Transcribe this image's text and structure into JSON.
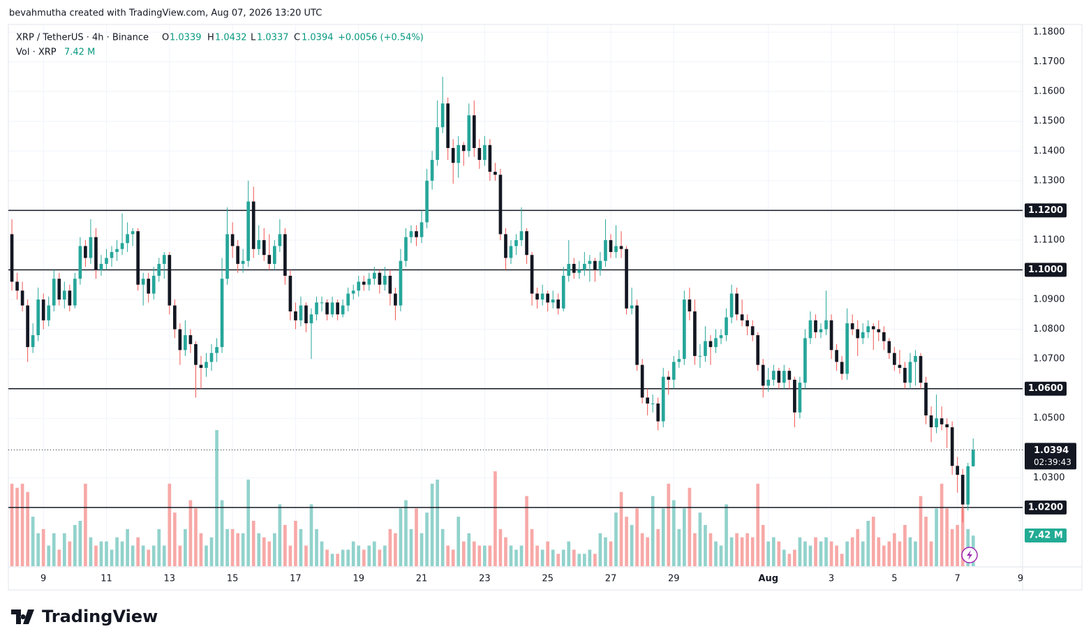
{
  "header": {
    "attribution": "bevahmutha created with TradingView.com, Aug 07, 2026 13:20 UTC",
    "brand": "TradingView"
  },
  "chart_data": {
    "type": "candlestick",
    "symbol": "XRP / TetherUS · 4h · Binance",
    "ohlc_labels": [
      "O",
      "H",
      "L",
      "C"
    ],
    "change": "+0.0056 (+0.54%)",
    "volume_title": "Vol · XRP",
    "volume_label": "7.42 M",
    "countdown": "02:39:43",
    "up_color": "#26a69a",
    "down_color": "#131722",
    "up_wick": "#26a69a",
    "down_wick": "#ef5350",
    "up_volume_color": "#92d2cc",
    "down_volume_color": "#f7a9a7",
    "grid": true,
    "ylim": [
      1.0,
      1.1826
    ],
    "xlim": [
      -0.67,
      192.4
    ],
    "yticks": [
      {
        "value": 1.18,
        "label": "1.1800"
      },
      {
        "value": 1.17,
        "label": "1.1700"
      },
      {
        "value": 1.16,
        "label": "1.1600"
      },
      {
        "value": 1.15,
        "label": "1.1500"
      },
      {
        "value": 1.14,
        "label": "1.1400"
      },
      {
        "value": 1.13,
        "label": "1.1300"
      },
      {
        "value": 1.11,
        "label": "1.1100"
      },
      {
        "value": 1.09,
        "label": "1.0900"
      },
      {
        "value": 1.08,
        "label": "1.0800"
      },
      {
        "value": 1.07,
        "label": "1.0700"
      },
      {
        "value": 1.05,
        "label": "1.0500"
      },
      {
        "value": 1.03,
        "label": "1.0300"
      }
    ],
    "hlines": [
      {
        "value": 1.12,
        "label": "1.1200"
      },
      {
        "value": 1.1,
        "label": "1.1000"
      },
      {
        "value": 1.06,
        "label": "1.0600"
      },
      {
        "value": 1.02,
        "label": "1.0200"
      }
    ],
    "xticks": [
      {
        "value": 6,
        "label": "9"
      },
      {
        "value": 18,
        "label": "11"
      },
      {
        "value": 30,
        "label": "13"
      },
      {
        "value": 42,
        "label": "15"
      },
      {
        "value": 54,
        "label": "17"
      },
      {
        "value": 66,
        "label": "19"
      },
      {
        "value": 78,
        "label": "21"
      },
      {
        "value": 90,
        "label": "23"
      },
      {
        "value": 102,
        "label": "25"
      },
      {
        "value": 114,
        "label": "27"
      },
      {
        "value": 126,
        "label": "29"
      },
      {
        "value": 144,
        "label": "Aug"
      },
      {
        "value": 156,
        "label": "3"
      },
      {
        "value": 168,
        "label": "5"
      },
      {
        "value": 180,
        "label": "7"
      },
      {
        "value": 192,
        "label": "9"
      }
    ],
    "candles": [
      [
        1.112,
        1.117,
        1.093,
        1.096
      ],
      [
        1.096,
        1.099,
        1.09,
        1.093
      ],
      [
        1.093,
        1.096,
        1.086,
        1.088
      ],
      [
        1.088,
        1.09,
        1.069,
        1.074
      ],
      [
        1.074,
        1.082,
        1.072,
        1.078
      ],
      [
        1.078,
        1.094,
        1.076,
        1.09
      ],
      [
        1.09,
        1.092,
        1.08,
        1.083
      ],
      [
        1.083,
        1.091,
        1.081,
        1.088
      ],
      [
        1.088,
        1.1,
        1.086,
        1.097
      ],
      [
        1.097,
        1.099,
        1.088,
        1.09
      ],
      [
        1.09,
        1.096,
        1.087,
        1.093
      ],
      [
        1.093,
        1.095,
        1.086,
        1.088
      ],
      [
        1.088,
        1.099,
        1.087,
        1.097
      ],
      [
        1.097,
        1.111,
        1.095,
        1.108
      ],
      [
        1.108,
        1.11,
        1.101,
        1.104
      ],
      [
        1.104,
        1.117,
        1.102,
        1.111
      ],
      [
        1.111,
        1.114,
        1.097,
        1.1
      ],
      [
        1.1,
        1.105,
        1.098,
        1.102
      ],
      [
        1.102,
        1.107,
        1.1,
        1.104
      ],
      [
        1.104,
        1.108,
        1.101,
        1.106
      ],
      [
        1.106,
        1.11,
        1.103,
        1.107
      ],
      [
        1.107,
        1.119,
        1.105,
        1.109
      ],
      [
        1.109,
        1.116,
        1.106,
        1.112
      ],
      [
        1.112,
        1.114,
        1.108,
        1.113
      ],
      [
        1.113,
        1.114,
        1.093,
        1.095
      ],
      [
        1.095,
        1.099,
        1.088,
        1.097
      ],
      [
        1.097,
        1.099,
        1.089,
        1.092
      ],
      [
        1.092,
        1.101,
        1.09,
        1.098
      ],
      [
        1.098,
        1.104,
        1.096,
        1.102
      ],
      [
        1.102,
        1.106,
        1.097,
        1.105
      ],
      [
        1.105,
        1.106,
        1.085,
        1.088
      ],
      [
        1.088,
        1.09,
        1.077,
        1.08
      ],
      [
        1.08,
        1.082,
        1.068,
        1.073
      ],
      [
        1.073,
        1.083,
        1.071,
        1.078
      ],
      [
        1.078,
        1.08,
        1.072,
        1.075
      ],
      [
        1.075,
        1.076,
        1.057,
        1.068
      ],
      [
        1.068,
        1.071,
        1.06,
        1.067
      ],
      [
        1.067,
        1.072,
        1.064,
        1.069
      ],
      [
        1.069,
        1.075,
        1.066,
        1.072
      ],
      [
        1.072,
        1.077,
        1.069,
        1.074
      ],
      [
        1.074,
        1.104,
        1.072,
        1.097
      ],
      [
        1.097,
        1.121,
        1.095,
        1.112
      ],
      [
        1.112,
        1.116,
        1.104,
        1.108
      ],
      [
        1.108,
        1.11,
        1.099,
        1.102
      ],
      [
        1.102,
        1.107,
        1.099,
        1.103
      ],
      [
        1.103,
        1.13,
        1.101,
        1.123
      ],
      [
        1.123,
        1.128,
        1.104,
        1.107
      ],
      [
        1.107,
        1.115,
        1.105,
        1.11
      ],
      [
        1.11,
        1.114,
        1.103,
        1.105
      ],
      [
        1.105,
        1.112,
        1.1,
        1.102
      ],
      [
        1.102,
        1.11,
        1.1,
        1.108
      ],
      [
        1.108,
        1.117,
        1.106,
        1.112
      ],
      [
        1.112,
        1.114,
        1.095,
        1.098
      ],
      [
        1.098,
        1.1,
        1.083,
        1.086
      ],
      [
        1.086,
        1.089,
        1.08,
        1.083
      ],
      [
        1.083,
        1.091,
        1.081,
        1.088
      ],
      [
        1.088,
        1.089,
        1.079,
        1.082
      ],
      [
        1.082,
        1.087,
        1.07,
        1.085
      ],
      [
        1.085,
        1.091,
        1.083,
        1.089
      ],
      [
        1.089,
        1.091,
        1.086,
        1.089
      ],
      [
        1.089,
        1.09,
        1.083,
        1.085
      ],
      [
        1.085,
        1.091,
        1.084,
        1.089
      ],
      [
        1.089,
        1.09,
        1.083,
        1.085
      ],
      [
        1.085,
        1.09,
        1.084,
        1.088
      ],
      [
        1.088,
        1.094,
        1.086,
        1.092
      ],
      [
        1.092,
        1.095,
        1.09,
        1.093
      ],
      [
        1.093,
        1.098,
        1.091,
        1.096
      ],
      [
        1.096,
        1.098,
        1.093,
        1.095
      ],
      [
        1.095,
        1.099,
        1.093,
        1.097
      ],
      [
        1.097,
        1.101,
        1.095,
        1.099
      ],
      [
        1.099,
        1.1,
        1.092,
        1.095
      ],
      [
        1.095,
        1.101,
        1.093,
        1.098
      ],
      [
        1.098,
        1.1,
        1.088,
        1.092
      ],
      [
        1.092,
        1.094,
        1.083,
        1.088
      ],
      [
        1.088,
        1.107,
        1.086,
        1.103
      ],
      [
        1.103,
        1.114,
        1.101,
        1.111
      ],
      [
        1.111,
        1.115,
        1.109,
        1.113
      ],
      [
        1.113,
        1.115,
        1.108,
        1.111
      ],
      [
        1.111,
        1.12,
        1.109,
        1.116
      ],
      [
        1.116,
        1.134,
        1.114,
        1.13
      ],
      [
        1.13,
        1.14,
        1.127,
        1.137
      ],
      [
        1.137,
        1.157,
        1.135,
        1.148
      ],
      [
        1.148,
        1.165,
        1.146,
        1.156
      ],
      [
        1.156,
        1.158,
        1.137,
        1.141
      ],
      [
        1.141,
        1.144,
        1.129,
        1.136
      ],
      [
        1.136,
        1.145,
        1.131,
        1.142
      ],
      [
        1.142,
        1.143,
        1.135,
        1.14
      ],
      [
        1.14,
        1.156,
        1.138,
        1.152
      ],
      [
        1.152,
        1.157,
        1.138,
        1.141
      ],
      [
        1.141,
        1.144,
        1.134,
        1.137
      ],
      [
        1.137,
        1.145,
        1.135,
        1.142
      ],
      [
        1.142,
        1.144,
        1.13,
        1.133
      ],
      [
        1.133,
        1.136,
        1.13,
        1.132
      ],
      [
        1.132,
        1.134,
        1.11,
        1.112
      ],
      [
        1.112,
        1.114,
        1.1,
        1.104
      ],
      [
        1.104,
        1.11,
        1.102,
        1.108
      ],
      [
        1.108,
        1.112,
        1.105,
        1.11
      ],
      [
        1.11,
        1.121,
        1.108,
        1.113
      ],
      [
        1.113,
        1.114,
        1.102,
        1.105
      ],
      [
        1.105,
        1.106,
        1.088,
        1.092
      ],
      [
        1.092,
        1.094,
        1.087,
        1.09
      ],
      [
        1.09,
        1.095,
        1.088,
        1.092
      ],
      [
        1.092,
        1.093,
        1.086,
        1.089
      ],
      [
        1.089,
        1.093,
        1.087,
        1.09
      ],
      [
        1.09,
        1.092,
        1.085,
        1.087
      ],
      [
        1.087,
        1.101,
        1.086,
        1.098
      ],
      [
        1.098,
        1.11,
        1.096,
        1.102
      ],
      [
        1.102,
        1.104,
        1.097,
        1.099
      ],
      [
        1.099,
        1.103,
        1.097,
        1.1
      ],
      [
        1.1,
        1.106,
        1.098,
        1.102
      ],
      [
        1.102,
        1.105,
        1.096,
        1.103
      ],
      [
        1.103,
        1.104,
        1.096,
        1.1
      ],
      [
        1.1,
        1.106,
        1.098,
        1.103
      ],
      [
        1.103,
        1.117,
        1.101,
        1.11
      ],
      [
        1.11,
        1.112,
        1.104,
        1.106
      ],
      [
        1.106,
        1.115,
        1.104,
        1.108
      ],
      [
        1.108,
        1.113,
        1.104,
        1.107
      ],
      [
        1.107,
        1.108,
        1.085,
        1.087
      ],
      [
        1.087,
        1.094,
        1.085,
        1.088
      ],
      [
        1.088,
        1.09,
        1.066,
        1.068
      ],
      [
        1.068,
        1.07,
        1.055,
        1.057
      ],
      [
        1.057,
        1.06,
        1.051,
        1.055
      ],
      [
        1.055,
        1.058,
        1.052,
        1.055
      ],
      [
        1.055,
        1.057,
        1.046,
        1.049
      ],
      [
        1.049,
        1.067,
        1.047,
        1.064
      ],
      [
        1.064,
        1.066,
        1.058,
        1.063
      ],
      [
        1.063,
        1.071,
        1.06,
        1.069
      ],
      [
        1.069,
        1.073,
        1.067,
        1.07
      ],
      [
        1.07,
        1.093,
        1.068,
        1.09
      ],
      [
        1.09,
        1.094,
        1.083,
        1.086
      ],
      [
        1.086,
        1.09,
        1.068,
        1.071
      ],
      [
        1.071,
        1.075,
        1.067,
        1.071
      ],
      [
        1.071,
        1.081,
        1.069,
        1.076
      ],
      [
        1.076,
        1.078,
        1.068,
        1.074
      ],
      [
        1.074,
        1.08,
        1.072,
        1.077
      ],
      [
        1.077,
        1.08,
        1.075,
        1.078
      ],
      [
        1.078,
        1.087,
        1.076,
        1.084
      ],
      [
        1.084,
        1.095,
        1.082,
        1.092
      ],
      [
        1.092,
        1.094,
        1.083,
        1.085
      ],
      [
        1.085,
        1.09,
        1.081,
        1.083
      ],
      [
        1.083,
        1.085,
        1.078,
        1.081
      ],
      [
        1.081,
        1.083,
        1.076,
        1.078
      ],
      [
        1.078,
        1.079,
        1.066,
        1.068
      ],
      [
        1.068,
        1.07,
        1.057,
        1.061
      ],
      [
        1.061,
        1.067,
        1.059,
        1.063
      ],
      [
        1.063,
        1.068,
        1.061,
        1.066
      ],
      [
        1.066,
        1.067,
        1.06,
        1.062
      ],
      [
        1.062,
        1.068,
        1.06,
        1.066
      ],
      [
        1.066,
        1.067,
        1.06,
        1.063
      ],
      [
        1.063,
        1.064,
        1.047,
        1.052
      ],
      [
        1.052,
        1.064,
        1.05,
        1.062
      ],
      [
        1.062,
        1.08,
        1.06,
        1.077
      ],
      [
        1.077,
        1.086,
        1.075,
        1.083
      ],
      [
        1.083,
        1.085,
        1.077,
        1.079
      ],
      [
        1.079,
        1.082,
        1.077,
        1.08
      ],
      [
        1.08,
        1.093,
        1.078,
        1.083
      ],
      [
        1.083,
        1.085,
        1.07,
        1.073
      ],
      [
        1.073,
        1.075,
        1.066,
        1.069
      ],
      [
        1.069,
        1.071,
        1.063,
        1.065
      ],
      [
        1.065,
        1.087,
        1.063,
        1.082
      ],
      [
        1.082,
        1.085,
        1.078,
        1.08
      ],
      [
        1.08,
        1.083,
        1.071,
        1.077
      ],
      [
        1.077,
        1.082,
        1.075,
        1.079
      ],
      [
        1.079,
        1.083,
        1.077,
        1.081
      ],
      [
        1.081,
        1.082,
        1.073,
        1.08
      ],
      [
        1.08,
        1.083,
        1.076,
        1.079
      ],
      [
        1.079,
        1.081,
        1.073,
        1.076
      ],
      [
        1.076,
        1.077,
        1.07,
        1.072
      ],
      [
        1.072,
        1.074,
        1.066,
        1.068
      ],
      [
        1.068,
        1.073,
        1.065,
        1.067
      ],
      [
        1.067,
        1.069,
        1.06,
        1.062
      ],
      [
        1.062,
        1.072,
        1.06,
        1.069
      ],
      [
        1.069,
        1.073,
        1.061,
        1.071
      ],
      [
        1.071,
        1.072,
        1.06,
        1.062
      ],
      [
        1.062,
        1.064,
        1.048,
        1.051
      ],
      [
        1.051,
        1.054,
        1.042,
        1.047
      ],
      [
        1.047,
        1.058,
        1.045,
        1.05
      ],
      [
        1.05,
        1.054,
        1.046,
        1.048
      ],
      [
        1.048,
        1.05,
        1.04,
        1.047
      ],
      [
        1.047,
        1.049,
        1.031,
        1.034
      ],
      [
        1.034,
        1.037,
        1.025,
        1.031
      ],
      [
        1.031,
        1.033,
        1.015,
        1.021
      ],
      [
        1.021,
        1.035,
        1.019,
        1.0339
      ],
      [
        1.0339,
        1.0432,
        1.0337,
        1.0394
      ]
    ],
    "volume": [
      20,
      19,
      20,
      18,
      12,
      8,
      9,
      5,
      8,
      4,
      8,
      6,
      10,
      11,
      20,
      7,
      5,
      6,
      6,
      4,
      7,
      6,
      9,
      5,
      7,
      5,
      4,
      5,
      9,
      5,
      20,
      13,
      5,
      9,
      16,
      14,
      8,
      5,
      7,
      33,
      16,
      9,
      9,
      8,
      8,
      21,
      11,
      8,
      7,
      6,
      8,
      15,
      10,
      5,
      11,
      9,
      5,
      15,
      9,
      6,
      4,
      3,
      3,
      4,
      4,
      6,
      5,
      4,
      5,
      6,
      4,
      5,
      9,
      8,
      14,
      16,
      9,
      14,
      8,
      13,
      20,
      21,
      9,
      5,
      4,
      12,
      6,
      8,
      6,
      5,
      5,
      5,
      23,
      9,
      7,
      5,
      4,
      5,
      17,
      9,
      5,
      4,
      6,
      4,
      3,
      4,
      6,
      4,
      3,
      3,
      4,
      3,
      8,
      7,
      6,
      13,
      18,
      12,
      10,
      14,
      8,
      7,
      17,
      9,
      14,
      20,
      16,
      9,
      14,
      19,
      8,
      13,
      10,
      8,
      6,
      5,
      15,
      7,
      8,
      7,
      8,
      7,
      20,
      10,
      6,
      7,
      6,
      4,
      3,
      4,
      7,
      6,
      5,
      7,
      6,
      7,
      6,
      5,
      3,
      6,
      7,
      9,
      6,
      11,
      12,
      7,
      5,
      6,
      8,
      6,
      10,
      7,
      6,
      17,
      12,
      6,
      14,
      20,
      14,
      9,
      10,
      14,
      9,
      7.42
    ]
  }
}
